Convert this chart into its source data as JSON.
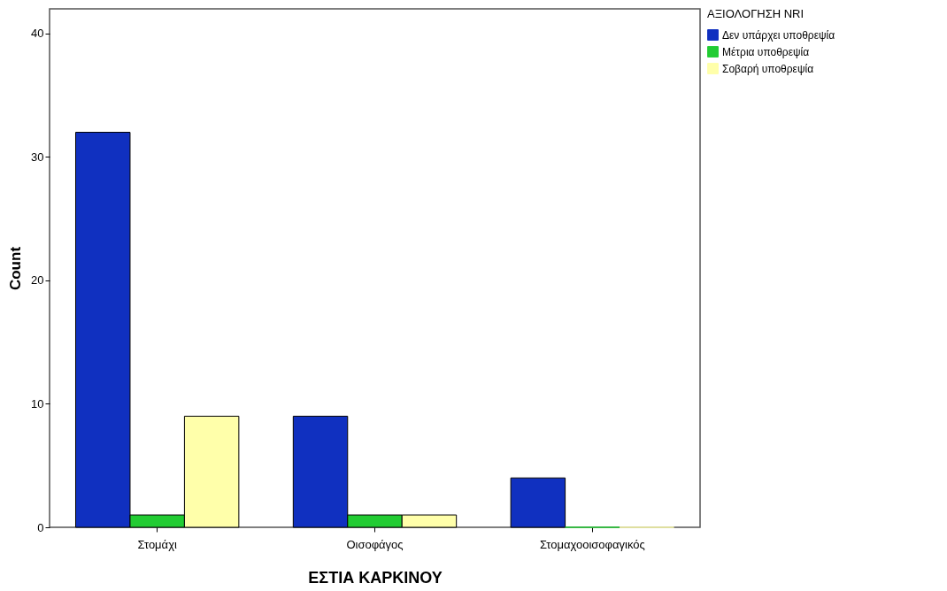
{
  "chart_data": {
    "type": "bar",
    "xlabel": "ΕΣΤΙΑ ΚΑΡΚΙΝΟΥ",
    "ylabel": "Count",
    "legend_title": "ΑΞΙΟΛΟΓΗΣΗ NRI",
    "categories": [
      "Στομάχι",
      "Οισοφάγος",
      "Στομαχοοισοφαγικός"
    ],
    "series": [
      {
        "name": "Δεν υπάρχει υποθρεψία",
        "color": "#1030c0",
        "values": [
          32,
          9,
          4
        ]
      },
      {
        "name": "Μέτρια υποθρεψία",
        "color": "#22cc33",
        "values": [
          1,
          1,
          0
        ]
      },
      {
        "name": "Σοβαρή υποθρεψία",
        "color": "#ffffaa",
        "values": [
          9,
          1,
          0
        ]
      }
    ],
    "ylim": [
      0,
      42
    ],
    "yticks": [
      0,
      10,
      20,
      30,
      40
    ],
    "grid": false,
    "legend": "top right"
  }
}
